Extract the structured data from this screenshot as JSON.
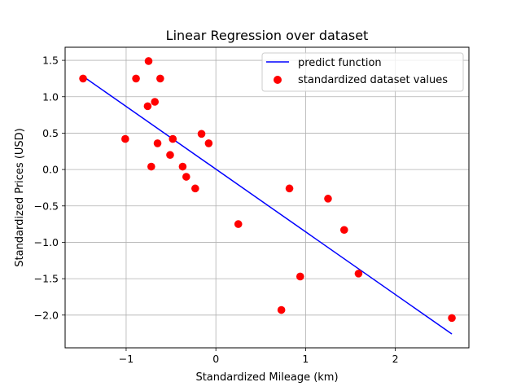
{
  "chart_data": {
    "type": "scatter",
    "title": "Linear Regression over dataset",
    "xlabel": "Standardized Mileage (km)",
    "ylabel": "Standardized Prices (USD)",
    "xlim": [
      -1.68,
      2.82
    ],
    "ylim": [
      -2.45,
      1.68
    ],
    "xticks": [
      -1,
      0,
      1,
      2
    ],
    "xtick_labels": [
      "−1",
      "0",
      "1",
      "2"
    ],
    "yticks": [
      1.5,
      1.0,
      0.5,
      0.0,
      -0.5,
      -1.0,
      -1.5,
      -2.0
    ],
    "ytick_labels": [
      "1.5",
      "1.0",
      "0.5",
      "0.0",
      "−0.5",
      "−1.0",
      "−1.5",
      "−2.0"
    ],
    "grid": true,
    "legend_position": "top-right",
    "series": [
      {
        "name": "predict function",
        "kind": "line",
        "color": "#0000ff",
        "x": [
          -1.48,
          2.63
        ],
        "y": [
          1.28,
          -2.26
        ]
      },
      {
        "name": "standardized dataset values",
        "kind": "scatter",
        "color": "#ff0000",
        "x": [
          -1.48,
          -0.89,
          -0.75,
          -0.62,
          -0.68,
          -0.76,
          -1.01,
          -0.65,
          -0.48,
          -0.16,
          -0.08,
          -0.51,
          -0.72,
          -0.37,
          -0.33,
          -0.23,
          0.25,
          0.82,
          1.25,
          0.94,
          1.43,
          1.59,
          0.73,
          2.63
        ],
        "y": [
          1.25,
          1.25,
          1.49,
          1.25,
          0.93,
          0.87,
          0.42,
          0.36,
          0.42,
          0.49,
          0.36,
          0.2,
          0.04,
          0.04,
          -0.1,
          -0.26,
          -0.75,
          -0.26,
          -0.4,
          -1.47,
          -0.83,
          -1.43,
          -1.93,
          -2.04
        ]
      }
    ]
  }
}
